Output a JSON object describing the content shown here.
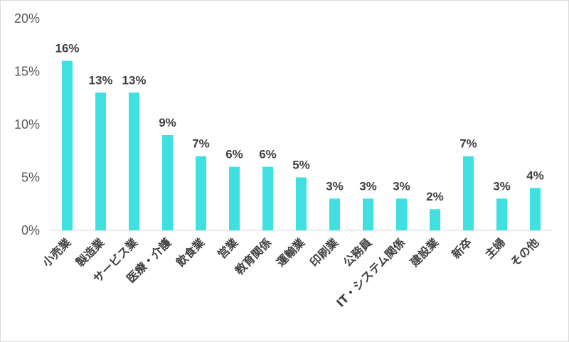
{
  "chart_data": {
    "type": "bar",
    "title": "",
    "xlabel": "",
    "ylabel": "",
    "ylim": [
      0,
      20
    ],
    "yticks": [
      "0%",
      "5%",
      "10%",
      "15%",
      "20%"
    ],
    "grid": false,
    "bar_color": "#41E0E0",
    "categories": [
      "小売業",
      "製造業",
      "サービス業",
      "医療・介護",
      "飲食業",
      "営業",
      "教育関係",
      "運輸業",
      "印刷業",
      "公務員",
      "IT・システム関係",
      "建設業",
      "新卒",
      "主婦",
      "その他"
    ],
    "values": [
      16,
      13,
      13,
      9,
      7,
      6,
      6,
      5,
      3,
      3,
      3,
      2,
      7,
      3,
      4
    ],
    "data_labels": [
      "16%",
      "13%",
      "13%",
      "9%",
      "7%",
      "6%",
      "6%",
      "5%",
      "3%",
      "3%",
      "3%",
      "2%",
      "7%",
      "3%",
      "4%"
    ]
  }
}
